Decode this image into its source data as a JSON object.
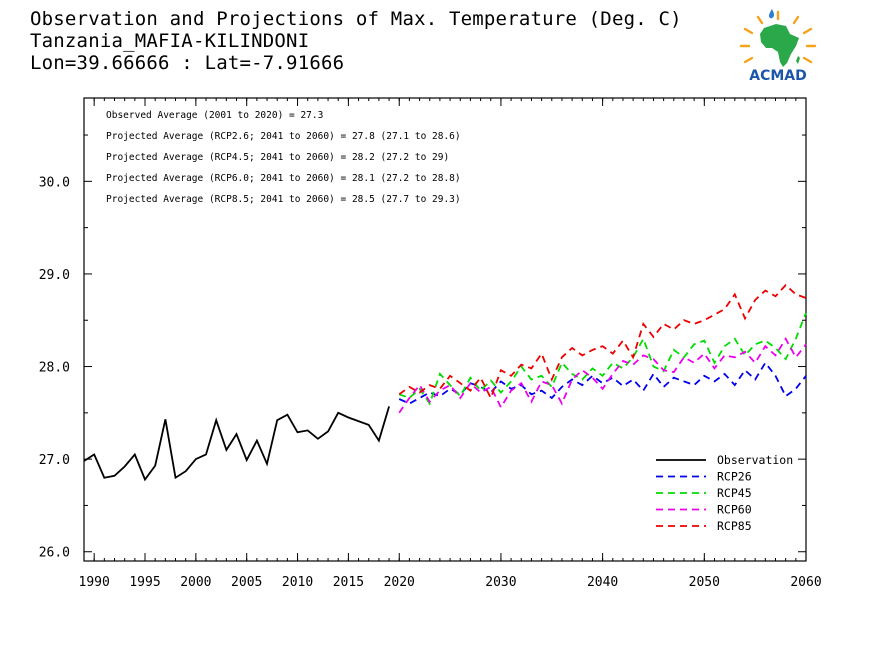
{
  "header": {
    "title": "Observation and Projections of Max. Temperature (Deg. C)",
    "station": "Tanzania_MAFIA-KILINDONI",
    "coords": "Lon=39.66666 : Lat=-7.91666"
  },
  "logo": {
    "text": "ACMAD",
    "icon": "africa-sun-logo"
  },
  "chart_data": {
    "type": "line",
    "annotations": [
      "Observed Average (2001 to 2020) = 27.3",
      "Projected Average (RCP2.6; 2041 to 2060) = 27.8 (27.1 to 28.6)",
      "Projected Average (RCP4.5; 2041 to 2060) = 28.2 (27.2 to 29)",
      "Projected Average (RCP6.0; 2041 to 2060) = 28.1 (27.2 to 28.8)",
      "Projected Average (RCP8.5; 2041 to 2060) = 28.5 (27.7 to 29.3)"
    ],
    "xlim": [
      1989,
      2060
    ],
    "ylim": [
      25.9,
      30.9
    ],
    "xticks": [
      {
        "v": 1990,
        "label": "1990"
      },
      {
        "v": 1995,
        "label": "1995"
      },
      {
        "v": 2000,
        "label": "2000"
      },
      {
        "v": 2005,
        "label": "2005"
      },
      {
        "v": 2010,
        "label": "2010"
      },
      {
        "v": 2015,
        "label": "2015"
      },
      {
        "v": 2020,
        "label": "2020"
      },
      {
        "v": 2030,
        "label": "2030"
      },
      {
        "v": 2040,
        "label": "2040"
      },
      {
        "v": 2050,
        "label": "2050"
      },
      {
        "v": 2060,
        "label": "2060"
      }
    ],
    "yticks": [
      {
        "v": 26,
        "label": "26.0"
      },
      {
        "v": 27,
        "label": "27.0"
      },
      {
        "v": 28,
        "label": "28.0"
      },
      {
        "v": 29,
        "label": "29.0"
      },
      {
        "v": 30,
        "label": "30.0"
      }
    ],
    "grid": false,
    "legend_position": "bottom-right",
    "series": [
      {
        "name": "Observation",
        "color": "#000000",
        "dashed": false,
        "x": [
          1989,
          1990,
          1991,
          1992,
          1993,
          1994,
          1995,
          1996,
          1997,
          1998,
          1999,
          2000,
          2001,
          2002,
          2003,
          2004,
          2005,
          2006,
          2007,
          2008,
          2009,
          2010,
          2011,
          2012,
          2013,
          2014,
          2015,
          2017,
          2018,
          2019
        ],
        "y": [
          26.98,
          27.05,
          26.8,
          26.82,
          26.92,
          27.05,
          26.78,
          26.93,
          27.43,
          26.8,
          26.87,
          27.0,
          27.05,
          27.42,
          27.1,
          27.27,
          26.99,
          27.2,
          26.95,
          27.42,
          27.48,
          27.29,
          27.31,
          27.22,
          27.3,
          27.5,
          27.45,
          27.37,
          27.2,
          27.57
        ]
      },
      {
        "name": "RCP26",
        "color": "#0000ee",
        "dashed": true,
        "x": [
          2020,
          2021,
          2022,
          2023,
          2024,
          2025,
          2026,
          2027,
          2028,
          2029,
          2030,
          2031,
          2032,
          2033,
          2034,
          2035,
          2036,
          2037,
          2038,
          2039,
          2040,
          2041,
          2042,
          2043,
          2044,
          2045,
          2046,
          2047,
          2048,
          2049,
          2050,
          2051,
          2052,
          2053,
          2054,
          2055,
          2056,
          2057,
          2058,
          2059,
          2060
        ],
        "y": [
          27.65,
          27.6,
          27.66,
          27.72,
          27.68,
          27.76,
          27.7,
          27.82,
          27.78,
          27.72,
          27.84,
          27.76,
          27.8,
          27.7,
          27.74,
          27.66,
          27.78,
          27.86,
          27.8,
          27.9,
          27.82,
          27.88,
          27.79,
          27.86,
          27.74,
          27.92,
          27.78,
          27.88,
          27.84,
          27.8,
          27.9,
          27.84,
          27.92,
          27.8,
          27.96,
          27.86,
          28.04,
          27.9,
          27.68,
          27.76,
          27.9
        ]
      },
      {
        "name": "RCP45",
        "color": "#00dd00",
        "dashed": true,
        "x": [
          2020,
          2021,
          2022,
          2023,
          2024,
          2025,
          2026,
          2027,
          2028,
          2029,
          2030,
          2031,
          2032,
          2033,
          2034,
          2035,
          2036,
          2037,
          2038,
          2039,
          2040,
          2041,
          2042,
          2043,
          2044,
          2045,
          2046,
          2047,
          2048,
          2049,
          2050,
          2051,
          2052,
          2053,
          2054,
          2055,
          2056,
          2057,
          2058,
          2059,
          2060
        ],
        "y": [
          27.7,
          27.66,
          27.76,
          27.6,
          27.92,
          27.8,
          27.68,
          27.88,
          27.74,
          27.85,
          27.72,
          27.84,
          28.0,
          27.86,
          27.9,
          27.78,
          28.04,
          27.92,
          27.86,
          27.98,
          27.9,
          28.04,
          27.98,
          28.1,
          28.3,
          28.0,
          27.95,
          28.18,
          28.1,
          28.24,
          28.28,
          28.04,
          28.22,
          28.3,
          28.12,
          28.24,
          28.28,
          28.2,
          28.08,
          28.3,
          28.58
        ]
      },
      {
        "name": "RCP60",
        "color": "#ee00ee",
        "dashed": true,
        "x": [
          2020,
          2021,
          2022,
          2023,
          2024,
          2025,
          2026,
          2027,
          2028,
          2029,
          2030,
          2031,
          2032,
          2033,
          2034,
          2035,
          2036,
          2037,
          2038,
          2039,
          2040,
          2041,
          2042,
          2043,
          2044,
          2045,
          2046,
          2047,
          2048,
          2049,
          2050,
          2051,
          2052,
          2053,
          2054,
          2055,
          2056,
          2057,
          2058,
          2059,
          2060
        ],
        "y": [
          27.5,
          27.66,
          27.8,
          27.62,
          27.74,
          27.8,
          27.66,
          27.82,
          27.72,
          27.78,
          27.56,
          27.74,
          27.82,
          27.62,
          27.84,
          27.8,
          27.6,
          27.86,
          27.96,
          27.88,
          27.76,
          27.92,
          28.06,
          28.02,
          28.12,
          28.08,
          27.96,
          27.94,
          28.1,
          28.04,
          28.14,
          27.98,
          28.12,
          28.1,
          28.16,
          28.04,
          28.22,
          28.12,
          28.3,
          28.1,
          28.24
        ]
      },
      {
        "name": "RCP85",
        "color": "#ee0000",
        "dashed": true,
        "x": [
          2020,
          2021,
          2022,
          2023,
          2024,
          2025,
          2026,
          2027,
          2028,
          2029,
          2030,
          2031,
          2032,
          2033,
          2034,
          2035,
          2036,
          2037,
          2038,
          2039,
          2040,
          2041,
          2042,
          2043,
          2044,
          2045,
          2046,
          2047,
          2048,
          2049,
          2050,
          2051,
          2052,
          2053,
          2054,
          2055,
          2056,
          2057,
          2058,
          2059,
          2060
        ],
        "y": [
          27.7,
          27.78,
          27.72,
          27.8,
          27.76,
          27.9,
          27.82,
          27.74,
          27.88,
          27.66,
          27.96,
          27.9,
          28.02,
          27.98,
          28.14,
          27.86,
          28.1,
          28.2,
          28.12,
          28.18,
          28.22,
          28.14,
          28.28,
          28.1,
          28.46,
          28.32,
          28.46,
          28.4,
          28.5,
          28.46,
          28.5,
          28.56,
          28.62,
          28.78,
          28.52,
          28.72,
          28.82,
          28.76,
          28.88,
          28.78,
          28.74
        ]
      }
    ]
  }
}
